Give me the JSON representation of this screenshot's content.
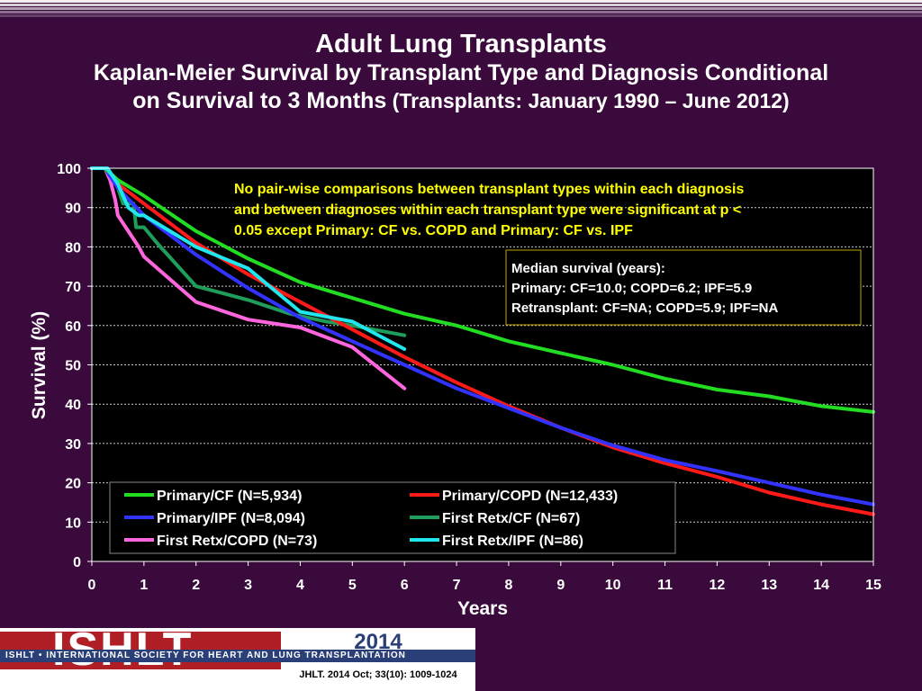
{
  "header": {
    "title": "Adult Lung Transplants",
    "subtitle_line1": "Kaplan-Meier Survival by Transplant Type and Diagnosis Conditional",
    "subtitle_line2_bold": "on Survival to 3 Months",
    "subtitle_line2_rest": " (Transplants: January 1990 – June 2012)"
  },
  "chart_data": {
    "type": "line",
    "xlabel": "Years",
    "ylabel": "Survival (%)",
    "xlim": [
      0,
      15
    ],
    "ylim": [
      0,
      100
    ],
    "x_ticks": [
      "0",
      "1",
      "2",
      "3",
      "4",
      "5",
      "6",
      "7",
      "8",
      "9",
      "10",
      "11",
      "12",
      "13",
      "14",
      "15"
    ],
    "y_ticks": [
      "0",
      "10",
      "20",
      "30",
      "40",
      "50",
      "60",
      "70",
      "80",
      "90",
      "100"
    ],
    "grid": "horizontal dashed",
    "legend_position": "bottom-left",
    "note": "No pair-wise comparisons between transplant types within each diagnosis and between diagnoses within each transplant type were significant at p < 0.05 except Primary: CF vs. COPD and Primary: CF vs. IPF",
    "median_box": {
      "title": "Median survival (years):",
      "line1": "Primary: CF=10.0; COPD=6.2; IPF=5.9",
      "line2": "Retransplant: CF=NA; COPD=5.9; IPF=NA"
    },
    "series": [
      {
        "name": "Primary/CF (N=5,934)",
        "color": "#22dd22",
        "points": [
          [
            0,
            100
          ],
          [
            0.25,
            100
          ],
          [
            0.5,
            97
          ],
          [
            1,
            93
          ],
          [
            2,
            84
          ],
          [
            3,
            77
          ],
          [
            4,
            71
          ],
          [
            5,
            67
          ],
          [
            6,
            63
          ],
          [
            7,
            60
          ],
          [
            8,
            56
          ],
          [
            9,
            53
          ],
          [
            10,
            50
          ],
          [
            11,
            46.5
          ],
          [
            12,
            43.7
          ],
          [
            13,
            42
          ],
          [
            14,
            39.5
          ],
          [
            15,
            38
          ]
        ]
      },
      {
        "name": "Primary/COPD (N=12,433)",
        "color": "#ff1a1a",
        "points": [
          [
            0,
            100
          ],
          [
            0.25,
            100
          ],
          [
            0.5,
            96
          ],
          [
            1,
            91
          ],
          [
            2,
            81
          ],
          [
            3,
            73
          ],
          [
            4,
            66
          ],
          [
            5,
            59
          ],
          [
            6,
            52
          ],
          [
            7,
            45.5
          ],
          [
            8,
            39.5
          ],
          [
            9,
            34
          ],
          [
            10,
            29
          ],
          [
            11,
            25
          ],
          [
            12,
            21.5
          ],
          [
            13,
            17.5
          ],
          [
            14,
            14.5
          ],
          [
            15,
            12
          ]
        ]
      },
      {
        "name": "Primary/IPF (N=8,094)",
        "color": "#3333ff",
        "points": [
          [
            0,
            100
          ],
          [
            0.25,
            100
          ],
          [
            0.5,
            95
          ],
          [
            1,
            88
          ],
          [
            2,
            78
          ],
          [
            3,
            69.5
          ],
          [
            4,
            62
          ],
          [
            5,
            56
          ],
          [
            6,
            50
          ],
          [
            7,
            44
          ],
          [
            8,
            39
          ],
          [
            9,
            34
          ],
          [
            10,
            29.5
          ],
          [
            11,
            25.8
          ],
          [
            12,
            23
          ],
          [
            13,
            20
          ],
          [
            14,
            17
          ],
          [
            15,
            14.5
          ]
        ]
      },
      {
        "name": "First Retx/CF (N=67)",
        "color": "#1e9e5a",
        "points": [
          [
            0,
            100
          ],
          [
            0.25,
            100
          ],
          [
            0.45,
            97
          ],
          [
            0.6,
            91
          ],
          [
            0.8,
            91
          ],
          [
            0.85,
            85
          ],
          [
            1,
            85
          ],
          [
            1.25,
            81
          ],
          [
            2,
            70
          ],
          [
            3,
            66.5
          ],
          [
            3.8,
            63
          ],
          [
            4.5,
            61
          ],
          [
            5,
            60
          ],
          [
            6,
            57.5
          ]
        ]
      },
      {
        "name": "First Retx/COPD (N=73)",
        "color": "#ff66dd",
        "points": [
          [
            0,
            100
          ],
          [
            0.25,
            100
          ],
          [
            0.35,
            97
          ],
          [
            0.45,
            92
          ],
          [
            0.5,
            88
          ],
          [
            0.6,
            86
          ],
          [
            0.7,
            84
          ],
          [
            0.8,
            82
          ],
          [
            0.9,
            80
          ],
          [
            1,
            77.5
          ],
          [
            2,
            66
          ],
          [
            3,
            61.5
          ],
          [
            4,
            59.5
          ],
          [
            5,
            54.5
          ],
          [
            6,
            44
          ]
        ]
      },
      {
        "name": "First Retx/IPF (N=86)",
        "color": "#22e6ee",
        "points": [
          [
            0,
            100
          ],
          [
            0.3,
            100
          ],
          [
            0.5,
            96
          ],
          [
            0.7,
            90
          ],
          [
            0.9,
            88
          ],
          [
            1,
            88
          ],
          [
            2,
            80
          ],
          [
            3,
            74.5
          ],
          [
            4,
            63.5
          ],
          [
            5,
            61
          ],
          [
            6,
            54
          ]
        ]
      }
    ]
  },
  "footer": {
    "logo_letters": "ISHLT",
    "society_name": "ISHLT • INTERNATIONAL SOCIETY FOR HEART AND LUNG TRANSPLANTATION",
    "year": "2014",
    "citation": "JHLT. 2014 Oct; 33(10): 1009-1024"
  }
}
